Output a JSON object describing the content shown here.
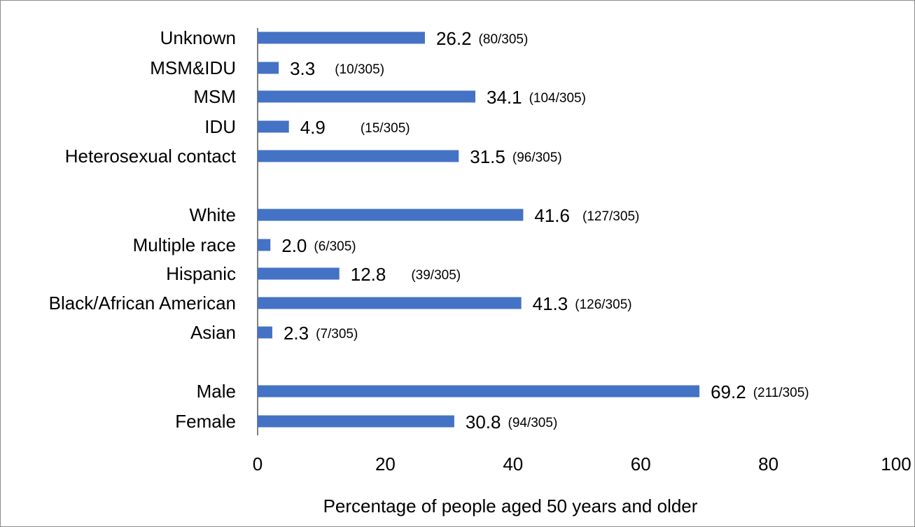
{
  "chart_data": {
    "type": "bar",
    "orientation": "horizontal",
    "categories": [
      "Unknown",
      "MSM&IDU",
      "MSM",
      "IDU",
      "Heterosexual contact",
      "White",
      "Multiple race",
      "Hispanic",
      "Black/African American",
      "Asian",
      "Male",
      "Female"
    ],
    "values": [
      26.2,
      3.3,
      34.1,
      4.9,
      31.5,
      41.6,
      2.0,
      12.8,
      41.3,
      2.3,
      69.2,
      30.8
    ],
    "value_labels": [
      "26.2",
      "3.3",
      "34.1",
      "4.9",
      "31.5",
      "41.6",
      "2.0",
      "12.8",
      "41.3",
      "2.3",
      "69.2",
      "30.8"
    ],
    "count_labels": [
      "(80/305)",
      "(10/305)",
      "(104/305)",
      "(15/305)",
      "(96/305)",
      "(127/305)",
      "(6/305)",
      "(39/305)",
      "(126/305)",
      "(7/305)",
      "(211/305)",
      "(94/305)"
    ],
    "groups": [
      [
        "Unknown",
        "MSM&IDU",
        "MSM",
        "IDU",
        "Heterosexual contact"
      ],
      [
        "White",
        "Multiple race",
        "Hispanic",
        "Black/African American",
        "Asian"
      ],
      [
        "Male",
        "Female"
      ]
    ],
    "xlabel": "Percentage of people aged 50 years and older",
    "xlim": [
      0,
      100
    ],
    "xticks": [
      "0",
      "20",
      "40",
      "60",
      "80",
      "100"
    ],
    "grid": false,
    "legend": "none",
    "bar_color": "#4472c4"
  }
}
